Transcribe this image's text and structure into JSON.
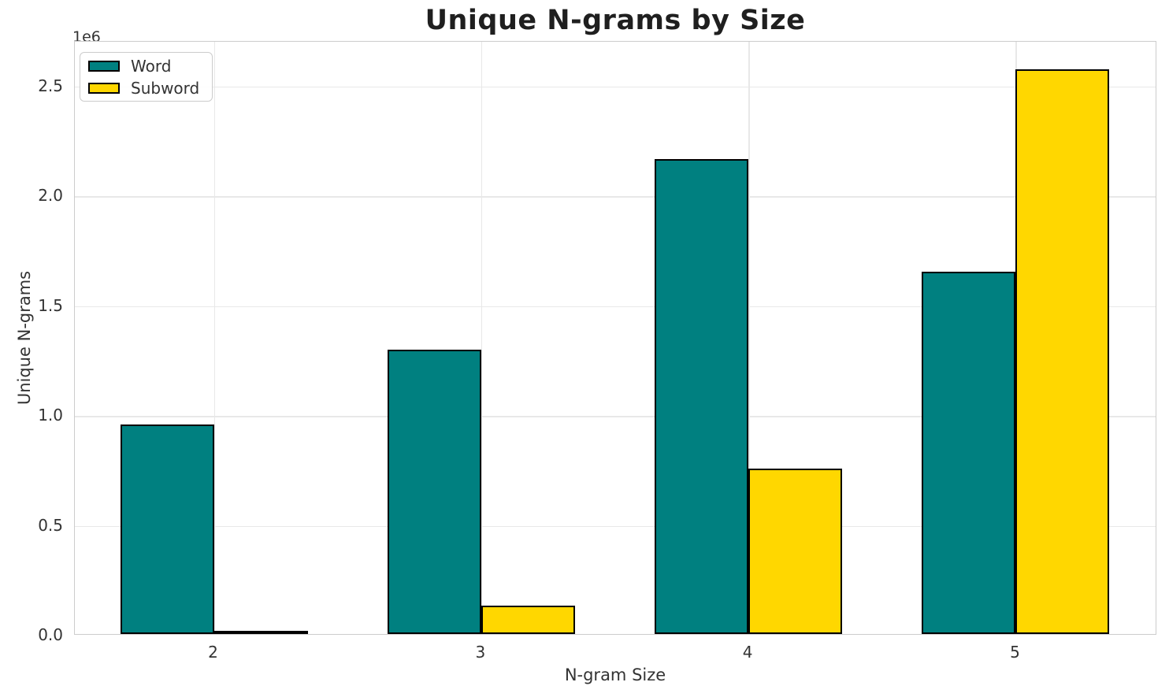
{
  "chart_data": {
    "type": "bar",
    "title": "Unique N-grams by Size",
    "xlabel": "N-gram Size",
    "ylabel": "Unique N-grams",
    "offset_text": "1e6",
    "categories": [
      "2",
      "3",
      "4",
      "5"
    ],
    "series": [
      {
        "name": "Word",
        "color": "#008080",
        "values": [
          954000,
          1295000,
          2162000,
          1650000
        ]
      },
      {
        "name": "Subword",
        "color": "#FFD700",
        "values": [
          15000,
          129000,
          754000,
          2571000
        ]
      }
    ],
    "ylim": [
      0,
      2704000
    ],
    "yticks": [
      0,
      500000,
      1000000,
      1500000,
      2000000,
      2500000
    ],
    "ytick_labels": [
      "0.0",
      "0.5",
      "1.0",
      "1.5",
      "2.0",
      "2.5"
    ],
    "grid": true,
    "grid_color": "#e8e8e8",
    "spine_color": "#cccccc",
    "bar_edge_color": "#000000",
    "text_color": "#333333",
    "title_color": "#1f1f1f",
    "legend_position": "upper left"
  }
}
